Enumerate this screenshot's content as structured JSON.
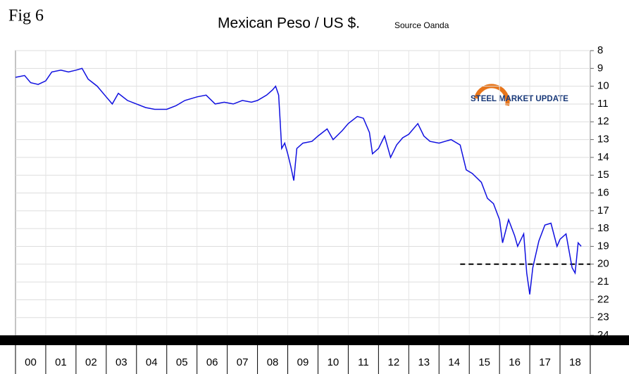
{
  "chart_data": {
    "type": "line",
    "fig_label": "Fig 6",
    "title": "Mexican Peso / US $.",
    "subtitle": "Source Oanda",
    "logo": "STEEL MARKET UPDATE",
    "categories": [
      "00",
      "01",
      "02",
      "03",
      "04",
      "05",
      "06",
      "07",
      "08",
      "09",
      "10",
      "11",
      "12",
      "13",
      "14",
      "15",
      "16",
      "17",
      "18"
    ],
    "xlim": [
      2000,
      2019
    ],
    "ylim": [
      8,
      24
    ],
    "y_inverted": true,
    "yticks": [
      8,
      9,
      10,
      11,
      12,
      13,
      14,
      15,
      16,
      17,
      18,
      19,
      20,
      21,
      22,
      23,
      24
    ],
    "grid": true,
    "reference_line": {
      "value": 20,
      "x_start": 2014.7,
      "x_end": 2019
    },
    "series": [
      {
        "name": "MXN per USD",
        "color": "#1010e0",
        "x": [
          2000.0,
          2000.3,
          2000.5,
          2000.75,
          2001.0,
          2001.2,
          2001.5,
          2001.75,
          2002.0,
          2002.2,
          2002.4,
          2002.7,
          2003.0,
          2003.2,
          2003.4,
          2003.7,
          2004.0,
          2004.3,
          2004.6,
          2005.0,
          2005.3,
          2005.6,
          2006.0,
          2006.3,
          2006.6,
          2006.9,
          2007.2,
          2007.5,
          2007.8,
          2008.0,
          2008.3,
          2008.5,
          2008.6,
          2008.7,
          2008.75,
          2008.8,
          2008.9,
          2009.0,
          2009.1,
          2009.2,
          2009.3,
          2009.5,
          2009.8,
          2010.0,
          2010.3,
          2010.5,
          2010.8,
          2011.0,
          2011.3,
          2011.5,
          2011.7,
          2011.8,
          2012.0,
          2012.2,
          2012.4,
          2012.6,
          2012.8,
          2013.0,
          2013.3,
          2013.5,
          2013.7,
          2014.0,
          2014.4,
          2014.7,
          2014.9,
          2015.1,
          2015.4,
          2015.6,
          2015.8,
          2016.0,
          2016.1,
          2016.3,
          2016.5,
          2016.6,
          2016.8,
          2016.9,
          2017.0,
          2017.1,
          2017.3,
          2017.5,
          2017.7,
          2017.9,
          2018.0,
          2018.2,
          2018.4,
          2018.5,
          2018.6,
          2018.7
        ],
        "values": [
          9.5,
          9.4,
          9.8,
          9.9,
          9.7,
          9.2,
          9.1,
          9.2,
          9.1,
          9.0,
          9.6,
          10.0,
          10.6,
          11.0,
          10.4,
          10.8,
          11.0,
          11.2,
          11.3,
          11.3,
          11.1,
          10.8,
          10.6,
          10.5,
          11.0,
          10.9,
          11.0,
          10.8,
          10.9,
          10.8,
          10.5,
          10.2,
          10.0,
          10.5,
          12.0,
          13.5,
          13.2,
          13.8,
          14.5,
          15.3,
          13.5,
          13.2,
          13.1,
          12.8,
          12.4,
          13.0,
          12.5,
          12.1,
          11.7,
          11.8,
          12.6,
          13.8,
          13.5,
          12.8,
          14.0,
          13.3,
          12.9,
          12.7,
          12.1,
          12.8,
          13.1,
          13.2,
          13.0,
          13.3,
          14.7,
          14.9,
          15.4,
          16.3,
          16.6,
          17.5,
          18.8,
          17.5,
          18.4,
          19.0,
          18.3,
          20.5,
          21.7,
          20.2,
          18.7,
          17.8,
          17.7,
          19.0,
          18.6,
          18.3,
          20.2,
          20.5,
          18.8,
          19.0
        ]
      }
    ]
  }
}
